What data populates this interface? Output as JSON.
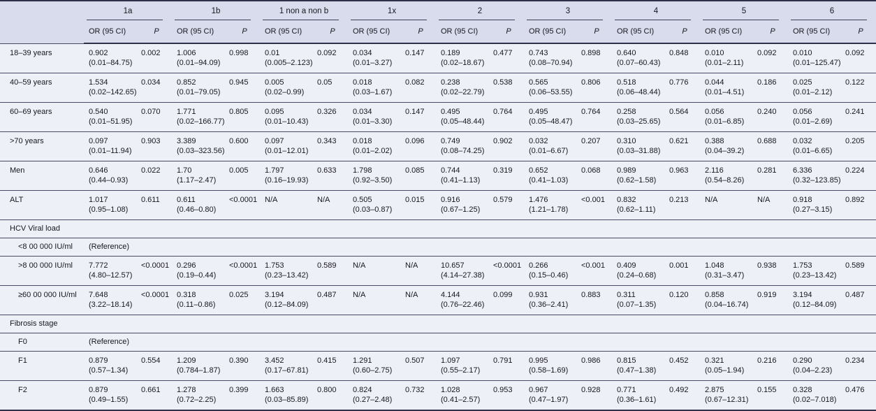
{
  "table": {
    "subheader": {
      "or": "OR (95 CI)",
      "p": "P"
    },
    "groups": [
      {
        "label": "1a"
      },
      {
        "label": "1b"
      },
      {
        "label": "1 non a non b"
      },
      {
        "label": "1x"
      },
      {
        "label": "2"
      },
      {
        "label": "3"
      },
      {
        "label": "4"
      },
      {
        "label": "5"
      },
      {
        "label": "6"
      }
    ],
    "rows": [
      {
        "type": "data",
        "label": "18–39 years",
        "indent": false,
        "cells": [
          {
            "or": "0.902",
            "ci": "(0.01–84.75)",
            "p": "0.002"
          },
          {
            "or": "1.006",
            "ci": "(0.01–94.09)",
            "p": "0.998"
          },
          {
            "or": "0.01",
            "ci": "(0.005–2.123)",
            "p": "0.092"
          },
          {
            "or": "0.034",
            "ci": "(0.01–3.27)",
            "p": "0.147"
          },
          {
            "or": "0.189",
            "ci": "(0.02–18.67)",
            "p": "0.477"
          },
          {
            "or": "0.743",
            "ci": "(0.08–70.94)",
            "p": "0.898"
          },
          {
            "or": "0.640",
            "ci": "(0.07–60.43)",
            "p": "0.848"
          },
          {
            "or": "0.010",
            "ci": "(0.01–2.11)",
            "p": "0.092"
          },
          {
            "or": "0.010",
            "ci": "(0.01–125.47)",
            "p": "0.092"
          }
        ]
      },
      {
        "type": "data",
        "label": "40–59 years",
        "indent": false,
        "cells": [
          {
            "or": "1.534",
            "ci": "(0.02–142.65)",
            "p": "0.034"
          },
          {
            "or": "0.852",
            "ci": "(0.01–79.05)",
            "p": "0.945"
          },
          {
            "or": "0.005",
            "ci": "(0.02–0.99)",
            "p": "0.05"
          },
          {
            "or": "0.018",
            "ci": "(0.03–1.67)",
            "p": "0.082"
          },
          {
            "or": "0.238",
            "ci": "(0.02–22.79)",
            "p": "0.538"
          },
          {
            "or": "0.565",
            "ci": "(0.06–53.55)",
            "p": "0.806"
          },
          {
            "or": "0.518",
            "ci": "(0.06–48.44)",
            "p": "0.776"
          },
          {
            "or": "0.044",
            "ci": "(0.01–4.51)",
            "p": "0.186"
          },
          {
            "or": "0.025",
            "ci": "(0.01–2.12)",
            "p": "0.122"
          }
        ]
      },
      {
        "type": "data",
        "label": "60–69 years",
        "indent": false,
        "cells": [
          {
            "or": "0.540",
            "ci": "(0.01–51.95)",
            "p": "0.070"
          },
          {
            "or": "1.771",
            "ci": "(0.02–166.77)",
            "p": "0.805"
          },
          {
            "or": "0.095",
            "ci": "(0.01–10.43)",
            "p": "0.326"
          },
          {
            "or": "0.034",
            "ci": "(0.01–3.30)",
            "p": "0.147"
          },
          {
            "or": "0.495",
            "ci": "(0.05–48.44)",
            "p": "0.764"
          },
          {
            "or": "0.495",
            "ci": "(0.05–48.47)",
            "p": "0.764"
          },
          {
            "or": "0.258",
            "ci": "(0.03–25.65)",
            "p": "0.564"
          },
          {
            "or": "0.056",
            "ci": "(0.01–6.85)",
            "p": "0.240"
          },
          {
            "or": "0.056",
            "ci": "(0.01–2.69)",
            "p": "0.241"
          }
        ]
      },
      {
        "type": "data",
        "label": ">70 years",
        "indent": false,
        "cells": [
          {
            "or": "0.097",
            "ci": "(0.01–11.94)",
            "p": "0.903"
          },
          {
            "or": "3.389",
            "ci": "(0.03–323.56)",
            "p": "0.600"
          },
          {
            "or": "0.097",
            "ci": "(0.01–12.01)",
            "p": "0.343"
          },
          {
            "or": "0.018",
            "ci": "(0.01–2.02)",
            "p": "0.096"
          },
          {
            "or": "0.749",
            "ci": "(0.08–74.25)",
            "p": "0.902"
          },
          {
            "or": "0.032",
            "ci": "(0.01–6.67)",
            "p": "0.207"
          },
          {
            "or": "0.310",
            "ci": "(0.03–31.88)",
            "p": "0.621"
          },
          {
            "or": "0.388",
            "ci": "(0.04–39.2)",
            "p": "0.688"
          },
          {
            "or": "0.032",
            "ci": "(0.01–6.65)",
            "p": "0.205"
          }
        ]
      },
      {
        "type": "data",
        "label": "Men",
        "indent": false,
        "cells": [
          {
            "or": "0.646",
            "ci": "(0.44–0.93)",
            "p": "0.022"
          },
          {
            "or": "1.70",
            "ci": "(1.17–2.47)",
            "p": "0.005"
          },
          {
            "or": "1.797",
            "ci": "(0.16–19.93)",
            "p": "0.633"
          },
          {
            "or": "1.798",
            "ci": "(0.92–3.50)",
            "p": "0.085"
          },
          {
            "or": "0.744",
            "ci": "(0.41–1.13)",
            "p": "0.319"
          },
          {
            "or": "0.652",
            "ci": "(0.41–1.03)",
            "p": "0.068"
          },
          {
            "or": "0.989",
            "ci": "(0.62–1.58)",
            "p": "0.963"
          },
          {
            "or": "2.116",
            "ci": "(0.54–8.26)",
            "p": "0.281"
          },
          {
            "or": "6.336",
            "ci": "(0.32–123.85)",
            "p": "0.224"
          }
        ]
      },
      {
        "type": "data",
        "label": "ALT",
        "indent": false,
        "cells": [
          {
            "or": "1.017",
            "ci": "(0.95–1.08)",
            "p": "0.611"
          },
          {
            "or": "0.611",
            "ci": "(0.46–0.80)",
            "p": "<0.0001"
          },
          {
            "or": "N/A",
            "ci": "",
            "p": "N/A"
          },
          {
            "or": "0.505",
            "ci": "(0.03–0.87)",
            "p": "0.015"
          },
          {
            "or": "0.916",
            "ci": "(0.67–1.25)",
            "p": "0.579"
          },
          {
            "or": "1.476",
            "ci": "(1.21–1.78)",
            "p": "<0.001"
          },
          {
            "or": "0.832",
            "ci": "(0.62–1.11)",
            "p": "0.213"
          },
          {
            "or": "N/A",
            "ci": "",
            "p": "N/A"
          },
          {
            "or": "0.918",
            "ci": "(0.27–3.15)",
            "p": "0.892"
          }
        ]
      },
      {
        "type": "section",
        "label": "HCV Viral load"
      },
      {
        "type": "reference",
        "label": "<8 00 000 IU/ml",
        "indent": true,
        "value": "(Reference)"
      },
      {
        "type": "data",
        "label": ">8 00 000 IU/ml",
        "indent": true,
        "cells": [
          {
            "or": "7.772",
            "ci": "(4.80–12.57)",
            "p": "<0.0001"
          },
          {
            "or": "0.296",
            "ci": "(0.19–0.44)",
            "p": "<0.0001"
          },
          {
            "or": "1.753",
            "ci": "(0.23–13.42)",
            "p": "0.589"
          },
          {
            "or": "N/A",
            "ci": "",
            "p": "N/A"
          },
          {
            "or": "10.657",
            "ci": "(4.14–27.38)",
            "p": "<0.0001"
          },
          {
            "or": "0.266",
            "ci": "(0.15–0.46)",
            "p": "<0.001"
          },
          {
            "or": "0.409",
            "ci": "(0.24–0.68)",
            "p": "0.001"
          },
          {
            "or": "1.048",
            "ci": "(0.31–3.47)",
            "p": "0.938"
          },
          {
            "or": "1.753",
            "ci": "(0.23–13.42)",
            "p": "0.589"
          }
        ]
      },
      {
        "type": "data",
        "label": "≥60 00 000 IU/ml",
        "indent": true,
        "cells": [
          {
            "or": "7.648",
            "ci": "(3.22–18.14)",
            "p": "<0.0001"
          },
          {
            "or": "0.318",
            "ci": "(0.11–0.86)",
            "p": "0.025"
          },
          {
            "or": "3.194",
            "ci": "(0.12–84.09)",
            "p": "0.487"
          },
          {
            "or": "N/A",
            "ci": "",
            "p": "N/A"
          },
          {
            "or": "4.144",
            "ci": "(0.76–22.46)",
            "p": "0.099"
          },
          {
            "or": "0.931",
            "ci": "(0.36–2.41)",
            "p": "0.883"
          },
          {
            "or": "0.311",
            "ci": "(0.07–1.35)",
            "p": "0.120"
          },
          {
            "or": "0.858",
            "ci": "(0.04–16.74)",
            "p": "0.919"
          },
          {
            "or": "3.194",
            "ci": "(0.12–84.09)",
            "p": "0.487"
          }
        ]
      },
      {
        "type": "section",
        "label": "Fibrosis stage"
      },
      {
        "type": "reference",
        "label": "F0",
        "indent": true,
        "value": "(Reference)"
      },
      {
        "type": "data",
        "label": "F1",
        "indent": true,
        "cells": [
          {
            "or": "0.879",
            "ci": "(0.57–1.34)",
            "p": "0.554"
          },
          {
            "or": "1.209",
            "ci": "(0.784–1.87)",
            "p": "0.390"
          },
          {
            "or": "3.452",
            "ci": "(0.17–67.81)",
            "p": "0.415"
          },
          {
            "or": "1.291",
            "ci": "(0.60–2.75)",
            "p": "0.507"
          },
          {
            "or": "1.097",
            "ci": "(0.55–2.17)",
            "p": "0.791"
          },
          {
            "or": "0.995",
            "ci": "(0.58–1.69)",
            "p": "0.986"
          },
          {
            "or": "0.815",
            "ci": "(0.47–1.38)",
            "p": "0.452"
          },
          {
            "or": "0.321",
            "ci": "(0.05–1.94)",
            "p": "0.216"
          },
          {
            "or": "0.290",
            "ci": "(0.04–2.23)",
            "p": "0.234"
          }
        ]
      },
      {
        "type": "data",
        "label": "F2",
        "indent": true,
        "cells": [
          {
            "or": "0.879",
            "ci": "(0.49–1.55)",
            "p": "0.661"
          },
          {
            "or": "1.278",
            "ci": "(0.72–2.25)",
            "p": "0.399"
          },
          {
            "or": "1.663",
            "ci": "(0.03–85.89)",
            "p": "0.800"
          },
          {
            "or": "0.824",
            "ci": "(0.27–2.48)",
            "p": "0.732"
          },
          {
            "or": "1.028",
            "ci": "(0.41–2.57)",
            "p": "0.953"
          },
          {
            "or": "0.967",
            "ci": "(0.47–1.97)",
            "p": "0.928"
          },
          {
            "or": "0.771",
            "ci": "(0.36–1.61)",
            "p": "0.492"
          },
          {
            "or": "2.875",
            "ci": "(0.67–12.31)",
            "p": "0.155"
          },
          {
            "or": "0.328",
            "ci": "(0.02–7.018)",
            "p": "0.476"
          }
        ]
      }
    ]
  },
  "colors": {
    "header_bg": "#d8dcec",
    "body_bg": "#eef0f7",
    "rule_dark": "#30304a",
    "rule_light": "#4a4a66",
    "text": "#17171f"
  }
}
